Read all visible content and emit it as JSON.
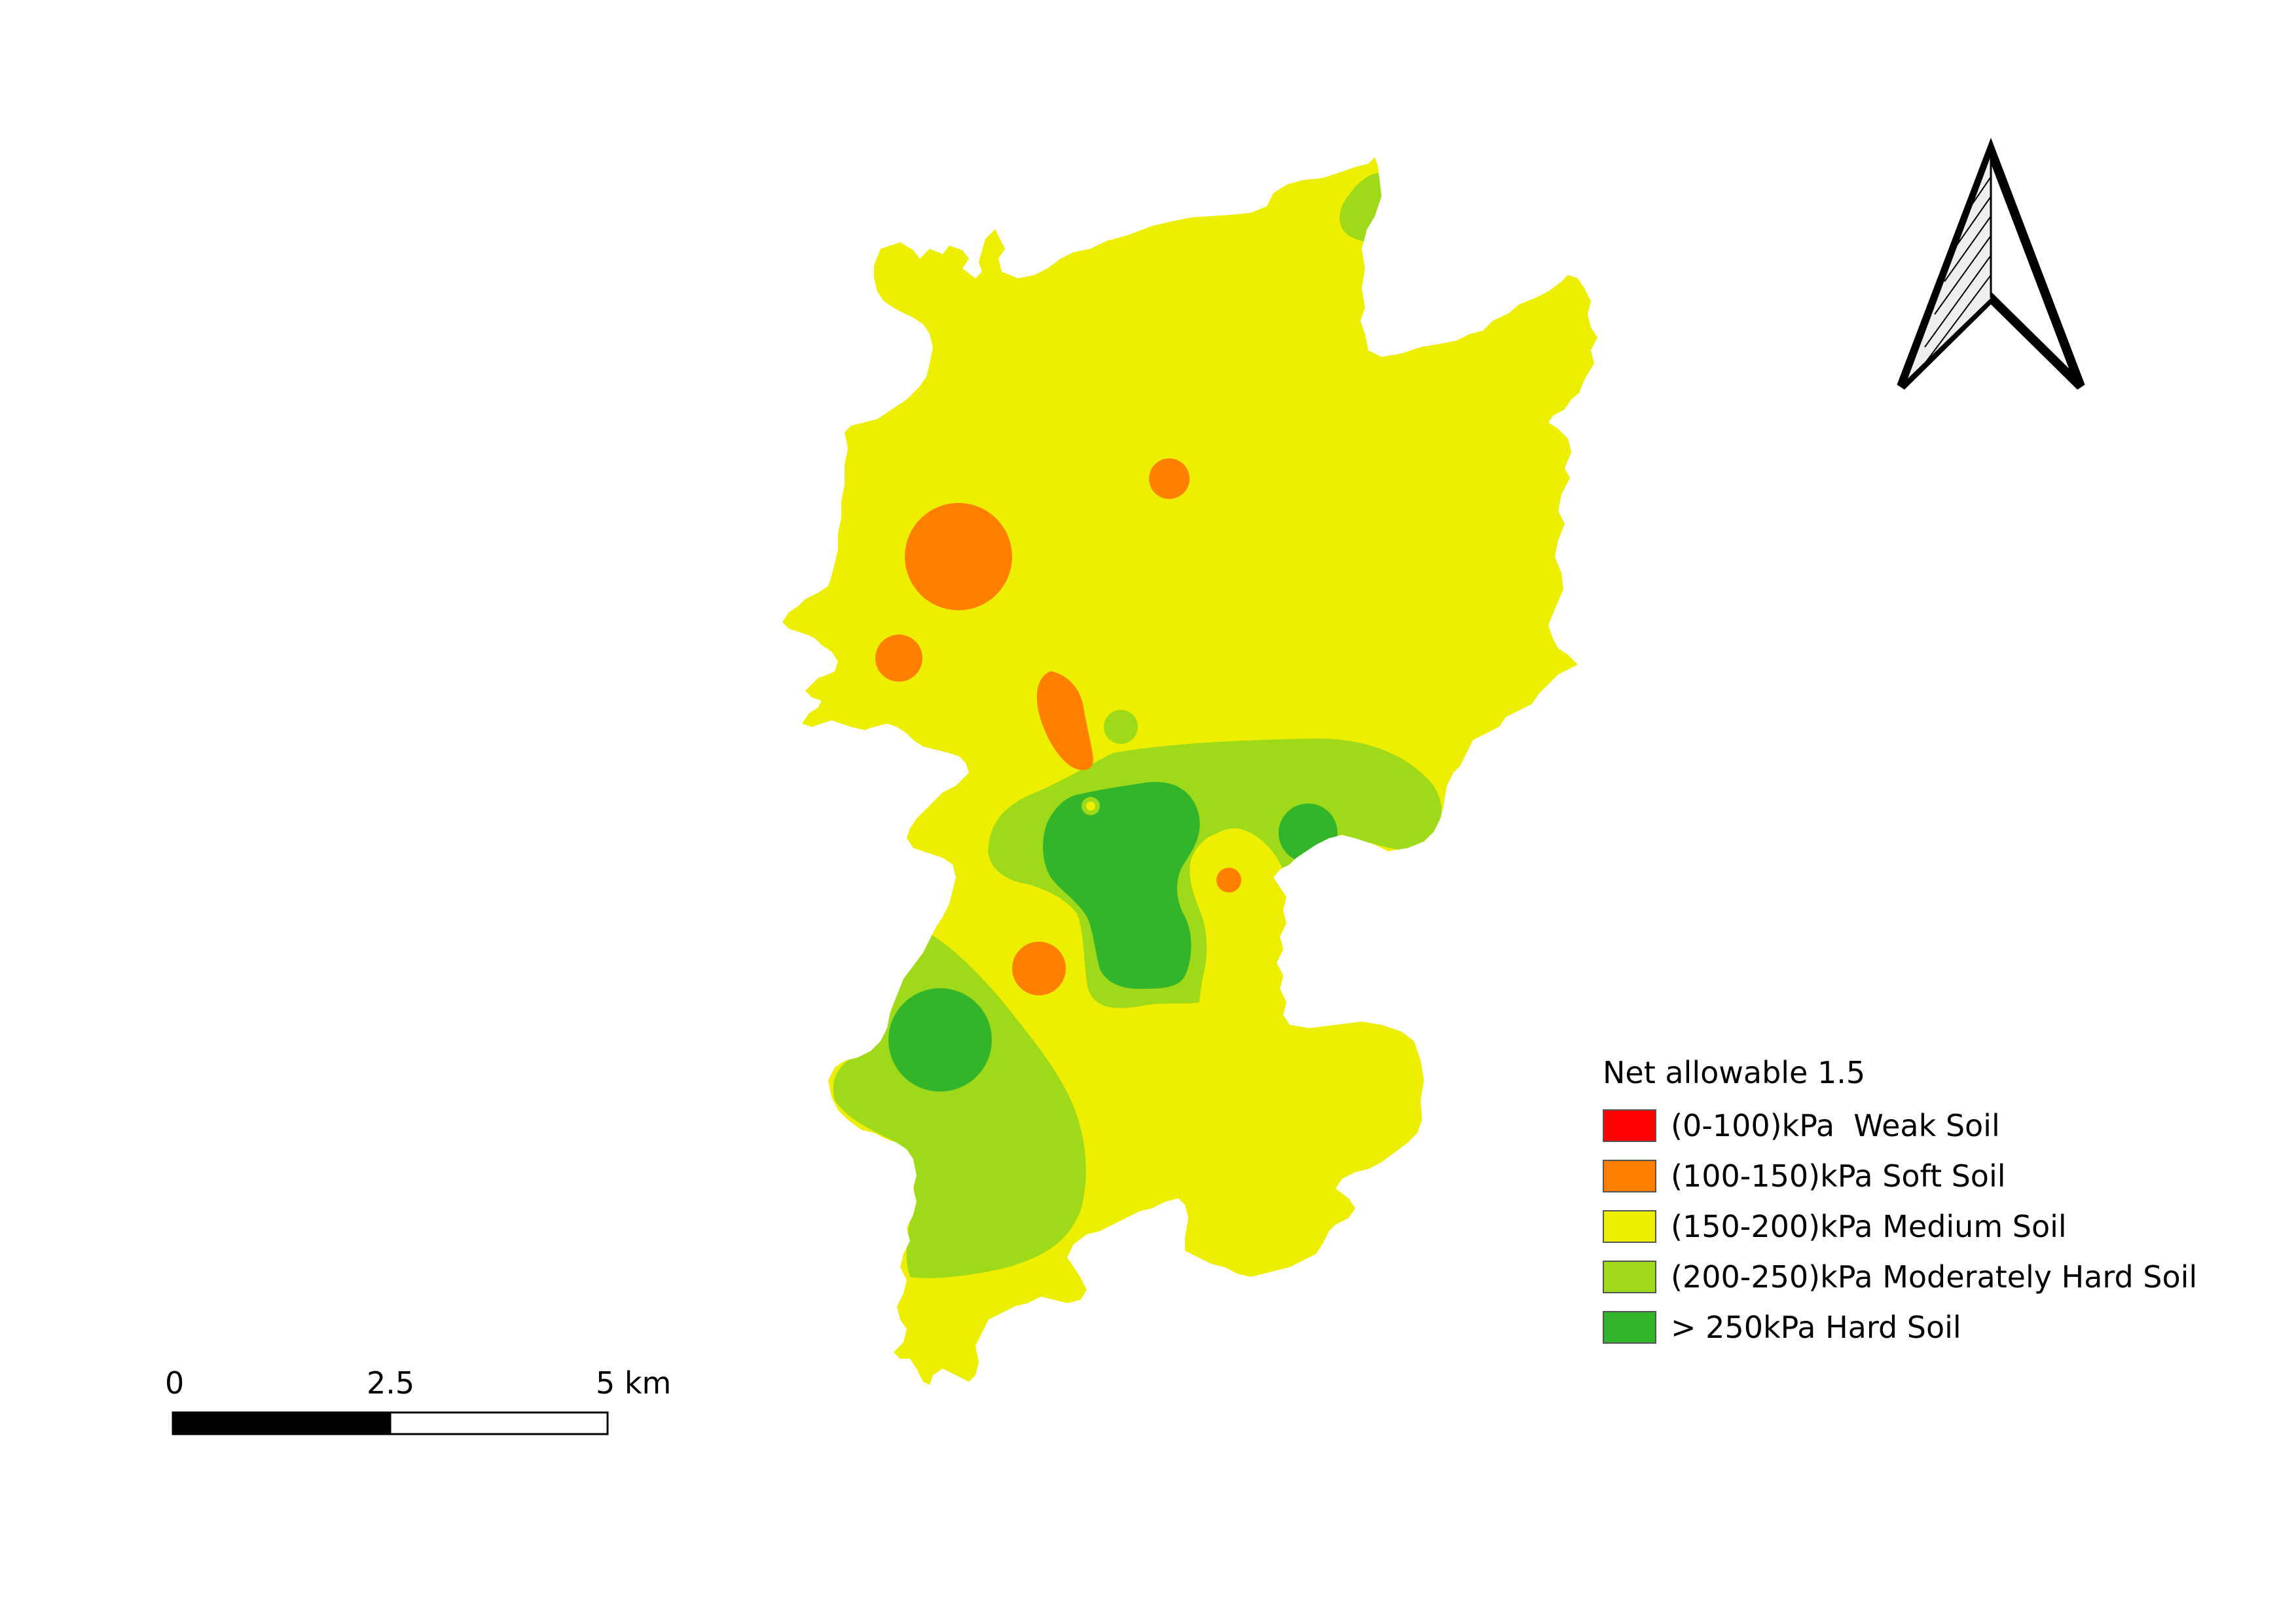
{
  "legend": {
    "title": "Net allowable 1.5",
    "items": [
      {
        "label": "(0-100)kPa  Weak Soil",
        "color": "#ff0000"
      },
      {
        "label": "(100-150)kPa Soft Soil",
        "color": "#ff7f00"
      },
      {
        "label": "(150-200)kPa Medium Soil",
        "color": "#eeee00"
      },
      {
        "label": "(200-250)kPa Moderately Hard Soil",
        "color": "#9ed91a"
      },
      {
        "label": "> 250kPa Hard Soil",
        "color": "#32b52a"
      }
    ]
  },
  "scale_bar": {
    "labels": [
      "0",
      "2.5",
      "5 km"
    ]
  },
  "north_arrow": {
    "icon": "north-arrow-icon"
  },
  "colors": {
    "weak": "#ff0000",
    "soft": "#ff7f00",
    "medium": "#eeee00",
    "moderately_hard": "#9ed91a",
    "hard": "#32b52a"
  }
}
